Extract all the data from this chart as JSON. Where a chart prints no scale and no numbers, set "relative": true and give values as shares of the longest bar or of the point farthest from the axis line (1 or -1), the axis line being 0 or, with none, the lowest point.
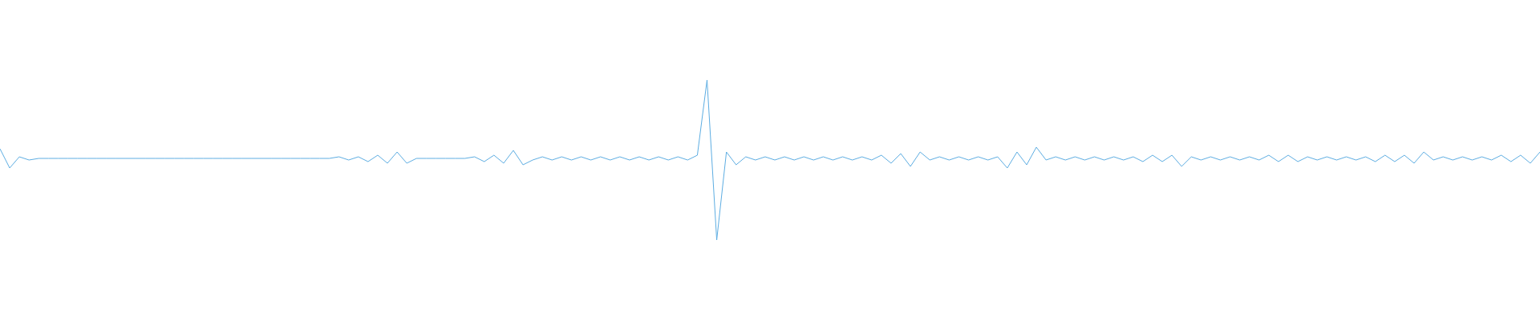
{
  "chart_data": {
    "type": "line",
    "relative": true,
    "categories": [
      null,
      null,
      null,
      null,
      null,
      null,
      null,
      null,
      null,
      null,
      null,
      null,
      null,
      null,
      null,
      null,
      null,
      null,
      null,
      null,
      null,
      null,
      null,
      null,
      null,
      null,
      null,
      null,
      null,
      null,
      null,
      null,
      null,
      null,
      null,
      null,
      null,
      null,
      null,
      null,
      null,
      null,
      null,
      null,
      null,
      null,
      null,
      null,
      null,
      null,
      null,
      null,
      null,
      null,
      null,
      null,
      null,
      null,
      null,
      null,
      null,
      null,
      null,
      null,
      null,
      null,
      null,
      null,
      null,
      null,
      null,
      null,
      null,
      null,
      null,
      null,
      null,
      null,
      null,
      null,
      null,
      null,
      null,
      null,
      null,
      null,
      null,
      null,
      null,
      null,
      null,
      null,
      null,
      null,
      null,
      null,
      null,
      null,
      null,
      null,
      null,
      null,
      null,
      null,
      null,
      null,
      null,
      null,
      null,
      null,
      null,
      null,
      null,
      null,
      null,
      null,
      null,
      null,
      null,
      null,
      null,
      null,
      null,
      null,
      null,
      null,
      null,
      null,
      null,
      null,
      null,
      null,
      null,
      null,
      null,
      null,
      null,
      null,
      null,
      null,
      null,
      null,
      null,
      null,
      null,
      null,
      null,
      null,
      null,
      null,
      null,
      null,
      null,
      null,
      null,
      null,
      null,
      null,
      null,
      null
    ],
    "series": [
      {
        "color": "#5dade2",
        "values": [
          0.57,
          0.45,
          0.52,
          0.5,
          0.51,
          0.51,
          0.51,
          0.51,
          0.51,
          0.51,
          0.51,
          0.51,
          0.51,
          0.51,
          0.51,
          0.51,
          0.51,
          0.51,
          0.51,
          0.51,
          0.51,
          0.51,
          0.51,
          0.51,
          0.51,
          0.51,
          0.51,
          0.51,
          0.51,
          0.51,
          0.51,
          0.51,
          0.51,
          0.51,
          0.51,
          0.52,
          0.5,
          0.52,
          0.49,
          0.53,
          0.48,
          0.55,
          0.48,
          0.51,
          0.51,
          0.51,
          0.51,
          0.51,
          0.51,
          0.52,
          0.49,
          0.53,
          0.48,
          0.56,
          0.47,
          0.5,
          0.52,
          0.5,
          0.52,
          0.5,
          0.52,
          0.5,
          0.52,
          0.5,
          0.52,
          0.5,
          0.52,
          0.5,
          0.52,
          0.5,
          0.52,
          0.5,
          0.53,
          1,
          0,
          0.55,
          0.47,
          0.52,
          0.5,
          0.52,
          0.5,
          0.52,
          0.5,
          0.52,
          0.5,
          0.52,
          0.5,
          0.52,
          0.5,
          0.52,
          0.5,
          0.53,
          0.48,
          0.54,
          0.46,
          0.55,
          0.5,
          0.52,
          0.5,
          0.52,
          0.5,
          0.52,
          0.5,
          0.52,
          0.45,
          0.55,
          0.47,
          0.58,
          0.5,
          0.52,
          0.5,
          0.52,
          0.5,
          0.52,
          0.5,
          0.52,
          0.5,
          0.52,
          0.49,
          0.53,
          0.49,
          0.53,
          0.46,
          0.52,
          0.5,
          0.52,
          0.5,
          0.52,
          0.5,
          0.52,
          0.5,
          0.53,
          0.49,
          0.53,
          0.49,
          0.52,
          0.5,
          0.52,
          0.5,
          0.52,
          0.5,
          0.52,
          0.49,
          0.53,
          0.49,
          0.53,
          0.48,
          0.55,
          0.5,
          0.52,
          0.5,
          0.52,
          0.5,
          0.52,
          0.5,
          0.53,
          0.49,
          0.53,
          0.48,
          0.55
        ]
      }
    ]
  }
}
